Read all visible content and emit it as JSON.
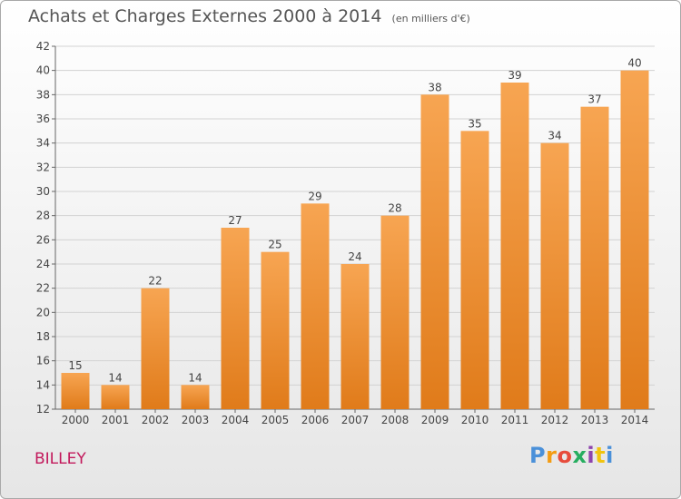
{
  "header": {
    "title": "Achats et Charges Externes 2000 à 2014",
    "unit": "(en milliers d'€)"
  },
  "footer": {
    "commune": "BILLEY",
    "logo": "Proxiti"
  },
  "colors": {
    "bar_top": "#f7a552",
    "bar_bottom": "#e07b1a",
    "commune": "#c2185b"
  },
  "chart_data": {
    "type": "bar",
    "title": "Achats et Charges Externes 2000 à 2014",
    "subtitle": "(en milliers d'€)",
    "categories": [
      "2000",
      "2001",
      "2002",
      "2003",
      "2004",
      "2005",
      "2006",
      "2007",
      "2008",
      "2009",
      "2010",
      "2011",
      "2012",
      "2013",
      "2014"
    ],
    "values": [
      15,
      14,
      22,
      14,
      27,
      25,
      29,
      24,
      28,
      38,
      35,
      39,
      34,
      37,
      40
    ],
    "ylim": [
      12,
      42
    ],
    "yticks": [
      12,
      14,
      16,
      18,
      20,
      22,
      24,
      26,
      28,
      30,
      32,
      34,
      36,
      38,
      40,
      42
    ],
    "grid": true,
    "xlabel": "",
    "ylabel": ""
  }
}
